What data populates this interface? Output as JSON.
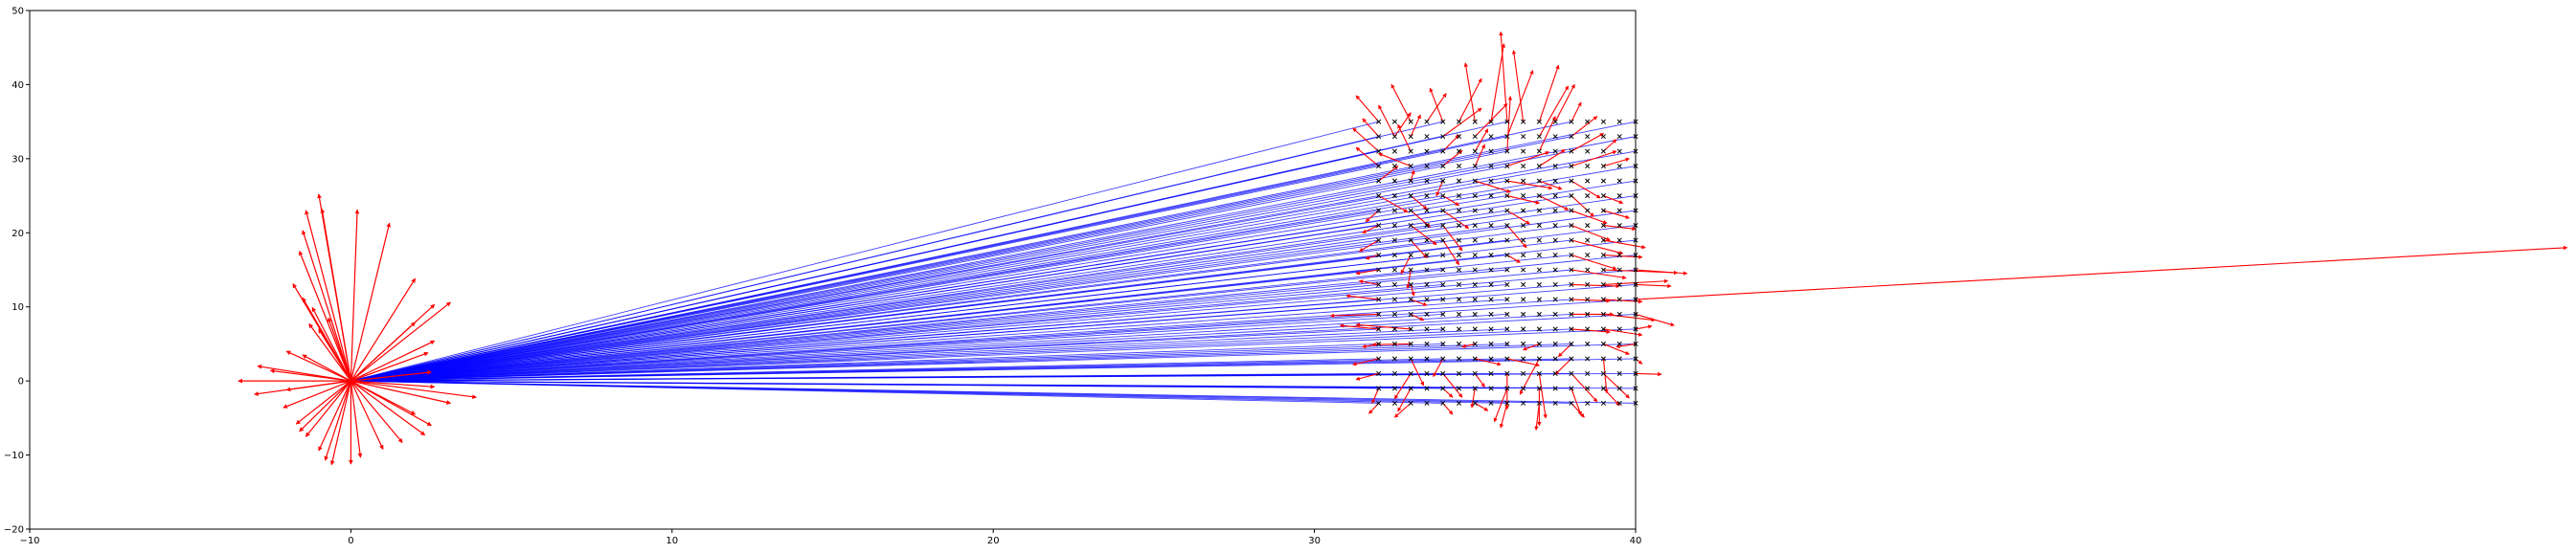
{
  "chart_data": {
    "type": "scatter",
    "title": "",
    "xlabel": "",
    "ylabel": "",
    "xlim": [
      -10,
      40
    ],
    "ylim": [
      -20,
      50
    ],
    "xticks": [
      -10,
      0,
      10,
      20,
      30,
      40
    ],
    "yticks": [
      -20,
      -10,
      0,
      10,
      20,
      30,
      40,
      50
    ],
    "xtick_labels": [
      "−10",
      "0",
      "10",
      "20",
      "30",
      "40"
    ],
    "ytick_labels": [
      "−20",
      "−10",
      "0",
      "10",
      "20",
      "30",
      "40",
      "50"
    ],
    "grid": false,
    "origin": [
      0,
      0
    ],
    "grid_points": {
      "x_from": 32,
      "x_to": 40,
      "x_step": 0.5,
      "y_from": -3,
      "y_to": 35,
      "y_step": 2,
      "marker": "x",
      "color": "#000000"
    },
    "rays": {
      "from": [
        0,
        0
      ],
      "color": "#0000ff",
      "to_ys": [
        -3,
        -1,
        1,
        3,
        5,
        7,
        9,
        11,
        13,
        15,
        17,
        19,
        21,
        23,
        25,
        27,
        29,
        31,
        33,
        35
      ],
      "to_xs": [
        32,
        34,
        36,
        38,
        40
      ]
    },
    "origin_vectors": {
      "color": "#ff0000",
      "tips": [
        [
          -3.5,
          0
        ],
        [
          -2.9,
          2.0
        ],
        [
          -2.5,
          1.4
        ],
        [
          -3.0,
          -1.8
        ],
        [
          -2.1,
          -3.6
        ],
        [
          -1.7,
          -5.8
        ],
        [
          -1.4,
          -7.5
        ],
        [
          -1.0,
          -9.4
        ],
        [
          -0.8,
          -10.7
        ],
        [
          -0.6,
          -11.3
        ],
        [
          0.0,
          -11.2
        ],
        [
          0.3,
          -10.3
        ],
        [
          1.0,
          -9.2
        ],
        [
          1.6,
          -8.3
        ],
        [
          2.3,
          -7.3
        ],
        [
          2.5,
          -6.0
        ],
        [
          2.0,
          -4.5
        ],
        [
          3.1,
          -3.0
        ],
        [
          3.9,
          -2.2
        ],
        [
          2.6,
          -0.8
        ],
        [
          2.5,
          1.2
        ],
        [
          2.4,
          3.8
        ],
        [
          2.6,
          5.4
        ],
        [
          2.0,
          7.9
        ],
        [
          3.1,
          10.6
        ],
        [
          2.6,
          10.3
        ],
        [
          2.0,
          13.8
        ],
        [
          1.2,
          21.3
        ],
        [
          0.2,
          23.1
        ],
        [
          -0.9,
          23.2
        ],
        [
          -1.0,
          25.2
        ],
        [
          -1.4,
          23.0
        ],
        [
          -1.5,
          20.3
        ],
        [
          -1.6,
          17.5
        ],
        [
          -1.8,
          13.1
        ],
        [
          -1.5,
          11.2
        ],
        [
          -1.2,
          9.9
        ],
        [
          -1.3,
          7.7
        ],
        [
          -2.0,
          4.0
        ],
        [
          -1.5,
          3.5
        ],
        [
          -1.0,
          7.0
        ],
        [
          -0.7,
          8.5
        ],
        [
          -2.0,
          -1.2
        ],
        [
          -1.6,
          -6.8
        ]
      ]
    },
    "grid_vectors": {
      "color": "#ff0000",
      "segments": [
        [
          32,
          35,
          31.3,
          38.5
        ],
        [
          32.5,
          33,
          32.0,
          37.2
        ],
        [
          33,
          35,
          32.4,
          40.0
        ],
        [
          33.5,
          35,
          34.1,
          38.8
        ],
        [
          34,
          35,
          33.6,
          39.5
        ],
        [
          34.5,
          35,
          35.2,
          40.8
        ],
        [
          35,
          35,
          34.7,
          42.9
        ],
        [
          35.5,
          35,
          35.9,
          45.5
        ],
        [
          36,
          35,
          35.8,
          47.1
        ],
        [
          36.5,
          35,
          36.2,
          44.6
        ],
        [
          37,
          35,
          37.6,
          42.6
        ],
        [
          37.5,
          35,
          38.1,
          40.0
        ],
        [
          38,
          35,
          38.3,
          37.6
        ],
        [
          32,
          33,
          31.5,
          35.4
        ],
        [
          32.5,
          33,
          33.0,
          36.2
        ],
        [
          33,
          33,
          33.3,
          35.9
        ],
        [
          34,
          33,
          35.2,
          36.8
        ],
        [
          35,
          33,
          36.0,
          37.4
        ],
        [
          36,
          33,
          36.8,
          41.9
        ],
        [
          37,
          33,
          37.9,
          39.8
        ],
        [
          38,
          33,
          38.8,
          35.7
        ],
        [
          32,
          31,
          31.2,
          34.1
        ],
        [
          33,
          31,
          32.6,
          34.6
        ],
        [
          34,
          31,
          34.5,
          33.2
        ],
        [
          35,
          31,
          35.4,
          34.0
        ],
        [
          36,
          31,
          36.1,
          38.4
        ],
        [
          37,
          31,
          37.5,
          35.7
        ],
        [
          38,
          31,
          39.0,
          33.4
        ],
        [
          39,
          31,
          39.4,
          32.6
        ],
        [
          32,
          29,
          31.3,
          31.5
        ],
        [
          33,
          29,
          32.0,
          30.7
        ],
        [
          34,
          29,
          34.6,
          31.1
        ],
        [
          35,
          29,
          35.3,
          31.9
        ],
        [
          36,
          29,
          37.3,
          30.9
        ],
        [
          37,
          29,
          37.8,
          31.2
        ],
        [
          38,
          29,
          39.4,
          31.0
        ],
        [
          39,
          29,
          39.8,
          30.0
        ],
        [
          32,
          27,
          32.6,
          29.0
        ],
        [
          33,
          27,
          33.1,
          28.4
        ],
        [
          34,
          27,
          33.8,
          25.0
        ],
        [
          35,
          27,
          36.1,
          25.5
        ],
        [
          36,
          27,
          37.4,
          26.0
        ],
        [
          37,
          27,
          37.7,
          25.9
        ],
        [
          38,
          27,
          38.9,
          24.7
        ],
        [
          32,
          25,
          32.9,
          22.8
        ],
        [
          33,
          25,
          33.5,
          23.2
        ],
        [
          34,
          25,
          34.5,
          23.7
        ],
        [
          36,
          25,
          37.0,
          24.0
        ],
        [
          37,
          25,
          37.9,
          23.1
        ],
        [
          38,
          25,
          38.7,
          22.2
        ],
        [
          39,
          25,
          39.6,
          24.0
        ],
        [
          32,
          23,
          31.6,
          21.5
        ],
        [
          33,
          23,
          33.6,
          20.8
        ],
        [
          34,
          23,
          34.8,
          20.6
        ],
        [
          36,
          23,
          36.7,
          21.2
        ],
        [
          38,
          23,
          39.1,
          21.3
        ],
        [
          39,
          23,
          39.8,
          22.0
        ],
        [
          32,
          21,
          31.5,
          20.0
        ],
        [
          33,
          21,
          33.8,
          18.4
        ],
        [
          34,
          21,
          34.6,
          17.6
        ],
        [
          36,
          21,
          36.6,
          18.0
        ],
        [
          38,
          21,
          39.2,
          19.0
        ],
        [
          39,
          21,
          40.0,
          20.5
        ],
        [
          32,
          19,
          31.4,
          17.5
        ],
        [
          33,
          19,
          33.5,
          16.6
        ],
        [
          34,
          19,
          34.5,
          15.7
        ],
        [
          38,
          19,
          39.6,
          17.2
        ],
        [
          39,
          19,
          40.3,
          18.0
        ],
        [
          32,
          17,
          31.6,
          16.5
        ],
        [
          33,
          17,
          32.7,
          14.5
        ],
        [
          36,
          17,
          36.4,
          16.0
        ],
        [
          38,
          17,
          39.4,
          15.1
        ],
        [
          39,
          17,
          40.2,
          16.7
        ],
        [
          32,
          15,
          31.3,
          14.5
        ],
        [
          33,
          15,
          32.9,
          12.5
        ],
        [
          38,
          15,
          39.7,
          13.9
        ],
        [
          39,
          15,
          41.3,
          14.6
        ],
        [
          40,
          15,
          41.6,
          14.5
        ],
        [
          32,
          13,
          31.4,
          13.5
        ],
        [
          33,
          13,
          33.1,
          11.5
        ],
        [
          38,
          13,
          39.5,
          12.8
        ],
        [
          39,
          13,
          41.0,
          13.5
        ],
        [
          40,
          13,
          41.1,
          12.8
        ],
        [
          32,
          11,
          31.0,
          11.5
        ],
        [
          33,
          11,
          33.5,
          10.2
        ],
        [
          38,
          11,
          39.2,
          10.8
        ],
        [
          39,
          11,
          40.2,
          10.7
        ],
        [
          40,
          11,
          69.0,
          18.0
        ],
        [
          32,
          9,
          30.5,
          8.8
        ],
        [
          33,
          9,
          33.4,
          8.2
        ],
        [
          38,
          9,
          39.3,
          9.0
        ],
        [
          39,
          9,
          40.6,
          8.2
        ],
        [
          40,
          9,
          41.2,
          7.5
        ],
        [
          32,
          7,
          30.8,
          7.5
        ],
        [
          33,
          7,
          31.3,
          7.6
        ],
        [
          38,
          7,
          39.2,
          6.6
        ],
        [
          39,
          7,
          40.2,
          6.2
        ],
        [
          40,
          7,
          40.5,
          7.4
        ],
        [
          32,
          5,
          31.5,
          4.6
        ],
        [
          33,
          5,
          31.8,
          4.9
        ],
        [
          35,
          5,
          34.6,
          4.6
        ],
        [
          37,
          5,
          36.5,
          4.2
        ],
        [
          38,
          5,
          37.6,
          3.3
        ],
        [
          39,
          5,
          39.8,
          3.6
        ],
        [
          40,
          5,
          39.4,
          4.6
        ],
        [
          32,
          3,
          31.2,
          2.2
        ],
        [
          33,
          3,
          33.4,
          -0.6
        ],
        [
          34,
          3,
          33.7,
          0.6
        ],
        [
          35,
          3,
          35.8,
          2.2
        ],
        [
          36,
          3,
          37.0,
          2.1
        ],
        [
          37,
          3,
          36.4,
          -1.8
        ],
        [
          38,
          3,
          37.5,
          0.9
        ],
        [
          39,
          3,
          39.1,
          -1.6
        ],
        [
          40,
          3,
          40.2,
          2.3
        ],
        [
          32,
          1,
          31.3,
          0.2
        ],
        [
          33,
          1,
          32.5,
          -2.4
        ],
        [
          34,
          1,
          34.6,
          -2.2
        ],
        [
          35,
          1,
          35.3,
          -0.8
        ],
        [
          36,
          1,
          36.0,
          -3.8
        ],
        [
          37,
          1,
          37.2,
          -5.0
        ],
        [
          38,
          1,
          38.8,
          -2.8
        ],
        [
          39,
          1,
          39.8,
          -2.3
        ],
        [
          40,
          1,
          40.8,
          0.9
        ],
        [
          32,
          -1,
          31.8,
          -3.0
        ],
        [
          33,
          -1,
          32.6,
          -4.1
        ],
        [
          34,
          -1,
          34.3,
          -2.2
        ],
        [
          35,
          -1,
          34.9,
          -3.6
        ],
        [
          36,
          -1,
          35.6,
          -5.5
        ],
        [
          37,
          -1,
          37.0,
          -6.0
        ],
        [
          38,
          -1,
          38.3,
          -4.6
        ],
        [
          39,
          -1,
          39.5,
          -3.3
        ],
        [
          32,
          -3,
          31.7,
          -4.4
        ],
        [
          33,
          -3,
          32.5,
          -4.9
        ],
        [
          34,
          -3,
          34.3,
          -4.5
        ],
        [
          35,
          -3,
          35.4,
          -4.0
        ],
        [
          36,
          -3,
          35.8,
          -6.3
        ],
        [
          37,
          -3,
          36.9,
          -6.6
        ],
        [
          38,
          -3,
          38.4,
          -4.9
        ]
      ]
    }
  }
}
